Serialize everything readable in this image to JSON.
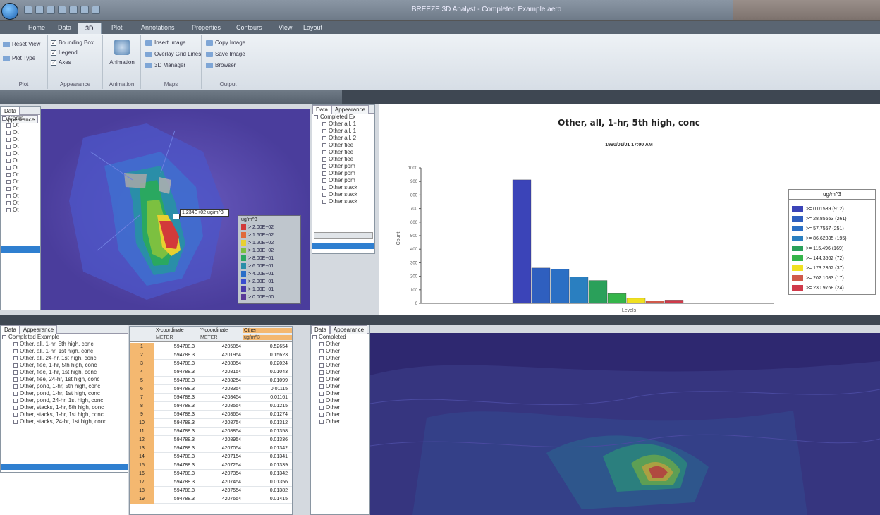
{
  "window": {
    "title": "BREEZE 3D Analyst - Completed Example.aero"
  },
  "tabs": [
    "Home",
    "Data",
    "3D",
    "Plot",
    "Annotations",
    "Properties",
    "Contours",
    "View",
    "Layout"
  ],
  "ribbon": {
    "groups": [
      {
        "label": "Plot",
        "items": [
          "Reset View",
          "Plot Type"
        ]
      },
      {
        "label": "Appearance",
        "items": [
          "Bounding Box",
          "Legend",
          "Axes"
        ]
      },
      {
        "label": "Animation",
        "items": [
          "Animation"
        ]
      },
      {
        "label": "Maps",
        "items": [
          "Insert Image",
          "Overlay Grid Lines",
          "3D Manager"
        ]
      },
      {
        "label": "Output",
        "items": [
          "Copy Image",
          "Save Image",
          "Browser"
        ]
      }
    ]
  },
  "left_tree_top": {
    "tabs": [
      "Data",
      "Appearance"
    ],
    "items": [
      "Comp",
      "Ot",
      "Ot",
      "Ot",
      "Ot",
      "Ot",
      "Ot",
      "Ot",
      "Ot",
      "Ot",
      "Ot",
      "Ot",
      "Ot",
      "Ot"
    ]
  },
  "map1": {
    "callout": "1.234E+02 ug/m^3",
    "legend_title": "ug/m^3",
    "legend_items": [
      {
        "label": "> 2.00E+02",
        "color": "#d23a3a"
      },
      {
        "label": "> 1.60E+02",
        "color": "#e06a3a"
      },
      {
        "label": "> 1.20E+02",
        "color": "#e8d030"
      },
      {
        "label": "> 1.00E+02",
        "color": "#7cc040"
      },
      {
        "label": "> 8.00E+01",
        "color": "#2aa860"
      },
      {
        "label": "> 6.00E+01",
        "color": "#2a8ea8"
      },
      {
        "label": "> 4.00E+01",
        "color": "#2a6ec8"
      },
      {
        "label": "> 2.00E+01",
        "color": "#3a4ed0"
      },
      {
        "label": "> 1.00E+01",
        "color": "#4a3aa8"
      },
      {
        "label": "> 0.00E+00",
        "color": "#5a3a98"
      }
    ]
  },
  "middle_tree": {
    "tabs": [
      "Data",
      "Appearance"
    ],
    "items": [
      "Completed Ex",
      "Other all, 1",
      "Other all, 1",
      "Other all, 2",
      "Other fiee",
      "Other fiee",
      "Other fiee",
      "Other pom",
      "Other pom",
      "Other pom",
      "Other stack",
      "Other stack",
      "Other stack"
    ]
  },
  "chart": {
    "title": "Other, all, 1-hr, 5th high, conc",
    "subtitle": "1990/01/01 17:00 AM",
    "xlabel": "Levels",
    "ylabel": "Count",
    "legend_title": "ug/m^3"
  },
  "chart_data": {
    "type": "bar",
    "title": "Other, all, 1-hr, 5th high, conc",
    "subtitle": "1990/01/01 17:00 AM",
    "xlabel": "Levels",
    "ylabel": "Count",
    "ylim": [
      0,
      1000
    ],
    "yticks": [
      0,
      100,
      200,
      300,
      400,
      500,
      600,
      700,
      800,
      900,
      1000
    ],
    "categories": [
      ">= 0.01539 (912)",
      ">= 28.85553 (261)",
      ">= 57.7557 (251)",
      ">= 86.62835 (195)",
      ">= 115.496 (169)",
      ">= 144.3562 (72)",
      ">= 173.2362 (37)",
      ">= 202.1083 (17)",
      ">= 230.9768 (24)"
    ],
    "values": [
      912,
      261,
      251,
      195,
      169,
      72,
      37,
      17,
      24
    ],
    "colors": [
      "#3b44b8",
      "#2f5fbf",
      "#2b6fc4",
      "#2a7fc0",
      "#2aa05a",
      "#35b54a",
      "#f0e020",
      "#d05a4a",
      "#d03a4a"
    ],
    "legend_placement": "right"
  },
  "bottom_tree": {
    "tabs": [
      "Data",
      "Appearance"
    ],
    "items": [
      "Completed Example",
      "Other, all, 1-hr, 5th high, conc",
      "Other, all, 1-hr, 1st high, conc",
      "Other, all, 24-hr, 1st high, conc",
      "Other, fiee, 1-hr, 5th high, conc",
      "Other, fiee, 1-hr, 1st high, conc",
      "Other, fiee, 24-hr, 1st high, conc",
      "Other, pond, 1-hr, 5th high, conc",
      "Other, pond, 1-hr, 1st high, conc",
      "Other, pond, 24-hr, 1st high, conc",
      "Other, stacks, 1-hr, 5th high, conc",
      "Other, stacks, 1-hr, 1st high, conc",
      "Other, stacks, 24-hr, 1st high, conc"
    ]
  },
  "grid": {
    "headers": [
      "X-coordinate",
      "Y-coordinate",
      "Other"
    ],
    "units": [
      "METER",
      "METER",
      "ug/m^3"
    ],
    "rows": [
      [
        "1",
        "594788.3",
        "4205854",
        "0.52654"
      ],
      [
        "2",
        "594788.3",
        "4201954",
        "0.15623"
      ],
      [
        "3",
        "594788.3",
        "4208054",
        "0.02024"
      ],
      [
        "4",
        "594788.3",
        "4208154",
        "0.01043"
      ],
      [
        "5",
        "594788.3",
        "4208254",
        "0.01099"
      ],
      [
        "6",
        "594788.3",
        "4208354",
        "0.01115"
      ],
      [
        "7",
        "594788.3",
        "4208454",
        "0.01161"
      ],
      [
        "8",
        "594788.3",
        "4208554",
        "0.01215"
      ],
      [
        "9",
        "594788.3",
        "4208654",
        "0.01274"
      ],
      [
        "10",
        "594788.3",
        "4208754",
        "0.01312"
      ],
      [
        "11",
        "594788.3",
        "4208854",
        "0.01358"
      ],
      [
        "12",
        "594788.3",
        "4208954",
        "0.01336"
      ],
      [
        "13",
        "594788.3",
        "4207054",
        "0.01342"
      ],
      [
        "14",
        "594788.3",
        "4207154",
        "0.01341"
      ],
      [
        "15",
        "594788.3",
        "4207254",
        "0.01339"
      ],
      [
        "16",
        "594788.3",
        "4207354",
        "0.01342"
      ],
      [
        "17",
        "594788.3",
        "4207454",
        "0.01356"
      ],
      [
        "18",
        "594788.3",
        "4207554",
        "0.01382"
      ],
      [
        "19",
        "594788.3",
        "4207654",
        "0.01415"
      ]
    ]
  },
  "right_tree": {
    "tabs": [
      "Data",
      "Appearance"
    ],
    "items": [
      "Completed",
      "Other",
      "Other",
      "Other",
      "Other",
      "Other",
      "Other",
      "Other",
      "Other",
      "Other",
      "Other",
      "Other",
      "Other"
    ]
  }
}
